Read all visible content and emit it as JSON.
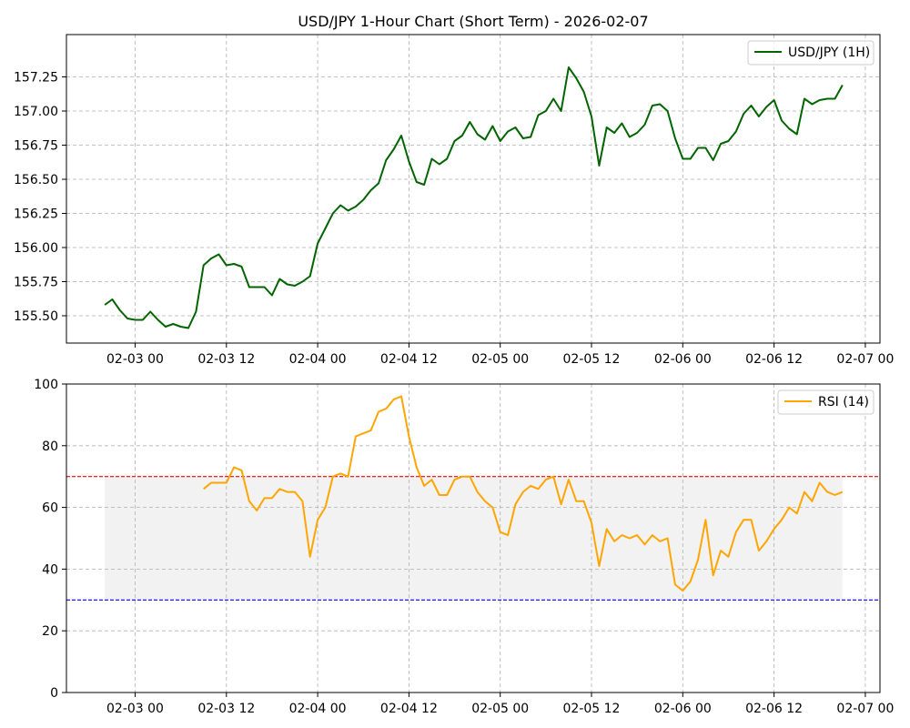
{
  "chart_data": [
    {
      "type": "line",
      "title": "USD/JPY 1-Hour Chart (Short Term) - 2026-02-07",
      "xlabel": "",
      "ylabel": "",
      "x_tick_labels": [
        "02-03 00",
        "02-03 12",
        "02-04 00",
        "02-04 12",
        "02-05 00",
        "02-05 12",
        "02-06 00",
        "02-06 12",
        "02-07 00"
      ],
      "y_tick_labels": [
        "155.50",
        "155.75",
        "156.00",
        "156.25",
        "156.50",
        "156.75",
        "157.00",
        "157.25"
      ],
      "ylim": [
        155.3,
        157.56
      ],
      "grid": true,
      "legend_position": "top-right",
      "series": [
        {
          "name": "USD/JPY (1H)",
          "color": "#006400",
          "x_hours_start": -4,
          "x_step_hours": 1,
          "values": [
            155.58,
            155.62,
            155.54,
            155.48,
            155.47,
            155.47,
            155.53,
            155.47,
            155.42,
            155.44,
            155.42,
            155.41,
            155.53,
            155.87,
            155.92,
            155.95,
            155.87,
            155.88,
            155.86,
            155.71,
            155.71,
            155.71,
            155.65,
            155.77,
            155.73,
            155.72,
            155.75,
            155.79,
            156.03,
            156.14,
            156.25,
            156.31,
            156.27,
            156.3,
            156.35,
            156.42,
            156.47,
            156.64,
            156.72,
            156.82,
            156.63,
            156.48,
            156.46,
            156.65,
            156.61,
            156.65,
            156.78,
            156.82,
            156.92,
            156.83,
            156.79,
            156.89,
            156.78,
            156.85,
            156.88,
            156.8,
            156.81,
            156.97,
            157.0,
            157.09,
            157.0,
            157.32,
            157.24,
            157.14,
            156.96,
            156.6,
            156.88,
            156.84,
            156.91,
            156.81,
            156.84,
            156.9,
            157.04,
            157.05,
            157.0,
            156.8,
            156.65,
            156.65,
            156.73,
            156.73,
            156.64,
            156.76,
            156.78,
            156.85,
            156.98,
            157.04,
            156.96,
            157.03,
            157.08,
            156.93,
            156.87,
            156.83,
            157.09,
            157.05,
            157.08,
            157.09,
            157.09,
            157.19
          ]
        }
      ]
    },
    {
      "type": "line",
      "title": "",
      "xlabel": "",
      "ylabel": "",
      "x_tick_labels": [
        "02-03 00",
        "02-03 12",
        "02-04 00",
        "02-04 12",
        "02-05 00",
        "02-05 12",
        "02-06 00",
        "02-06 12",
        "02-07 00"
      ],
      "y_tick_labels": [
        "0",
        "20",
        "40",
        "60",
        "80",
        "100"
      ],
      "ylim": [
        0,
        100
      ],
      "grid": true,
      "legend_position": "top-right",
      "overbought": 70,
      "oversold": 30,
      "overbought_color": "#ff0000",
      "oversold_color": "#0000ff",
      "band_fill": "#f2f2f2",
      "series": [
        {
          "name": "RSI (14)",
          "color": "#ffa500",
          "x_hours_start": 9,
          "x_step_hours": 1,
          "values": [
            66,
            68,
            68,
            68,
            73,
            72,
            62,
            59,
            63,
            63,
            66,
            65,
            65,
            62,
            44,
            56,
            60,
            70,
            71,
            70,
            83,
            84,
            85,
            91,
            92,
            95,
            96,
            83,
            73,
            67,
            69,
            64,
            64,
            69,
            70,
            70,
            65,
            62,
            60,
            52,
            51,
            61,
            65,
            67,
            66,
            69,
            70,
            61,
            69,
            62,
            62,
            55,
            41,
            53,
            49,
            51,
            50,
            51,
            48,
            51,
            49,
            50,
            35,
            33,
            36,
            43,
            56,
            38,
            46,
            44,
            52,
            56,
            56,
            46,
            49,
            53,
            56,
            60,
            58,
            65,
            62,
            68,
            65,
            64,
            65
          ]
        }
      ]
    }
  ]
}
